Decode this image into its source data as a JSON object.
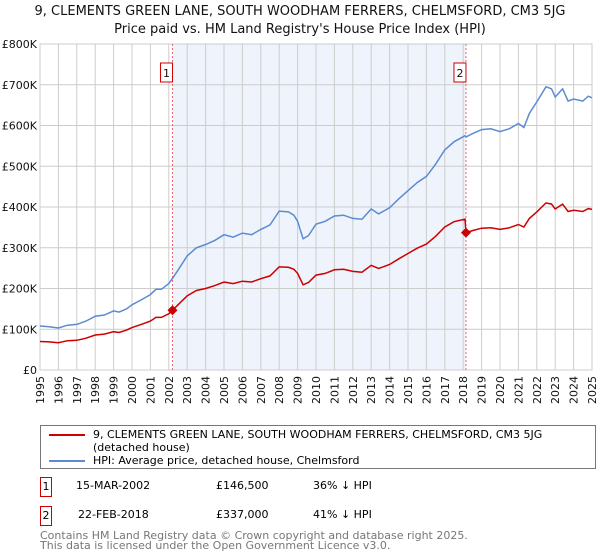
{
  "chart_data": {
    "type": "line",
    "title": "9, CLEMENTS GREEN LANE, SOUTH WOODHAM FERRERS, CHELMSFORD, CM3 5JG",
    "subtitle": "Price paid vs. HM Land Registry's House Price Index (HPI)",
    "xlim": [
      1995,
      2025
    ],
    "ylim": [
      0,
      800000
    ],
    "x_ticks": [
      "1995",
      "1996",
      "1997",
      "1998",
      "1999",
      "2000",
      "2001",
      "2002",
      "2003",
      "2004",
      "2005",
      "2006",
      "2007",
      "2008",
      "2009",
      "2010",
      "2011",
      "2012",
      "2013",
      "2014",
      "2015",
      "2016",
      "2017",
      "2018",
      "2019",
      "2020",
      "2021",
      "2022",
      "2023",
      "2024",
      "2025"
    ],
    "y_ticks": [
      {
        "v": 0,
        "label": "£0"
      },
      {
        "v": 100000,
        "label": "£100K"
      },
      {
        "v": 200000,
        "label": "£200K"
      },
      {
        "v": 300000,
        "label": "£300K"
      },
      {
        "v": 400000,
        "label": "£400K"
      },
      {
        "v": 500000,
        "label": "£500K"
      },
      {
        "v": 600000,
        "label": "£600K"
      },
      {
        "v": 700000,
        "label": "£700K"
      },
      {
        "v": 800000,
        "label": "£800K"
      }
    ],
    "grid": true,
    "shaded_range": [
      2002.2,
      2018.15
    ],
    "series": [
      {
        "name": "9, CLEMENTS GREEN LANE, SOUTH WOODHAM FERRERS, CHELMSFORD, CM3 5JG (detached house)",
        "color": "#cc0000",
        "x": [
          1995,
          1995.5,
          1996,
          1996.5,
          1997,
          1997.5,
          1998,
          1998.5,
          1999,
          1999.3,
          1999.7,
          2000,
          2000.5,
          2001,
          2001.3,
          2001.6,
          2002,
          2002.2,
          2002.5,
          2003,
          2003.5,
          2004,
          2004.5,
          2005,
          2005.5,
          2006,
          2006.5,
          2007,
          2007.5,
          2008,
          2008.5,
          2008.8,
          2009,
          2009.3,
          2009.6,
          2010,
          2010.5,
          2011,
          2011.5,
          2012,
          2012.5,
          2013,
          2013.4,
          2014,
          2014.5,
          2015,
          2015.5,
          2016,
          2016.5,
          2017,
          2017.5,
          2018.1,
          2018.15,
          2018.5,
          2019,
          2019.5,
          2020,
          2020.5,
          2021,
          2021.3,
          2021.6,
          2022,
          2022.5,
          2022.8,
          2023,
          2023.4,
          2023.7,
          2024,
          2024.5,
          2024.8,
          2025
        ],
        "y": [
          70,
          69,
          67,
          72,
          73,
          78,
          86,
          88,
          94,
          92,
          98,
          104,
          112,
          120,
          129,
          129,
          138,
          146.5,
          160,
          182,
          195,
          200,
          207,
          216,
          212,
          218,
          216,
          224,
          231,
          253,
          252,
          247,
          237,
          209,
          215,
          233,
          237,
          246,
          247,
          242,
          240,
          257,
          249,
          259,
          273,
          286,
          299,
          309,
          328,
          351,
          364,
          370,
          337,
          342,
          348,
          349,
          345,
          349,
          357,
          351,
          372,
          388,
          410,
          407,
          395,
          407,
          389,
          392,
          389,
          396,
          394
        ]
      },
      {
        "name": "HPI: Average price, detached house, Chelmsford",
        "color": "#5b8bd0",
        "x": [
          1995,
          1995.5,
          1996,
          1996.5,
          1997,
          1997.5,
          1998,
          1998.5,
          1999,
          1999.3,
          1999.7,
          2000,
          2000.5,
          2001,
          2001.3,
          2001.6,
          2002,
          2002.2,
          2002.5,
          2003,
          2003.5,
          2004,
          2004.5,
          2005,
          2005.5,
          2006,
          2006.5,
          2007,
          2007.5,
          2008,
          2008.5,
          2008.8,
          2009,
          2009.3,
          2009.6,
          2010,
          2010.5,
          2011,
          2011.5,
          2012,
          2012.5,
          2013,
          2013.4,
          2014,
          2014.5,
          2015,
          2015.5,
          2016,
          2016.5,
          2017,
          2017.5,
          2018.1,
          2018.15,
          2018.5,
          2019,
          2019.5,
          2020,
          2020.5,
          2021,
          2021.3,
          2021.6,
          2022,
          2022.5,
          2022.8,
          2023,
          2023.4,
          2023.7,
          2024,
          2024.5,
          2024.8,
          2025
        ],
        "y": [
          108,
          106,
          103,
          110,
          112,
          120,
          132,
          135,
          145,
          142,
          150,
          160,
          172,
          185,
          198,
          198,
          212,
          225,
          245,
          280,
          300,
          308,
          318,
          332,
          326,
          336,
          332,
          345,
          356,
          390,
          388,
          380,
          365,
          322,
          330,
          358,
          365,
          378,
          380,
          372,
          370,
          395,
          383,
          398,
          420,
          440,
          460,
          475,
          505,
          540,
          560,
          575,
          572,
          580,
          590,
          592,
          585,
          592,
          605,
          595,
          630,
          658,
          695,
          690,
          670,
          690,
          660,
          665,
          660,
          672,
          668
        ]
      }
    ],
    "y_units": "thousands GBP",
    "annotations": [
      {
        "label": "1",
        "x": 2002.2,
        "y": 146.5
      },
      {
        "label": "2",
        "x": 2018.15,
        "y": 337
      }
    ]
  },
  "legend": {
    "property": "9, CLEMENTS GREEN LANE, SOUTH WOODHAM FERRERS, CHELMSFORD, CM3 5JG (detached house)",
    "hpi": "HPI: Average price, detached house, Chelmsford"
  },
  "sales": [
    {
      "num": "1",
      "date": "15-MAR-2002",
      "price": "£146,500",
      "delta": "36% ↓ HPI"
    },
    {
      "num": "2",
      "date": "22-FEB-2018",
      "price": "£337,000",
      "delta": "41% ↓ HPI"
    }
  ],
  "footer": {
    "line1": "Contains HM Land Registry data © Crown copyright and database right 2025.",
    "line2": "This data is licensed under the Open Government Licence v3.0."
  }
}
